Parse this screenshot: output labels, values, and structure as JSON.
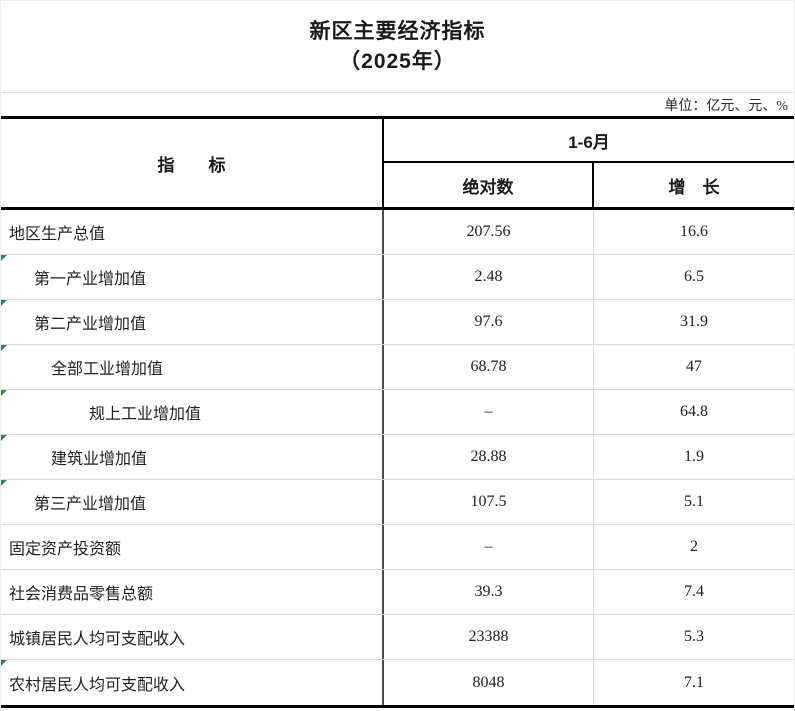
{
  "page": {
    "background_color": "#ffffff",
    "thick_border_color": "#000000",
    "row_separator_color": "#d9d9d9",
    "column_divider_color": "#4d4d4d",
    "flag_color": "#2e8b3d"
  },
  "header": {
    "title_line1": "新区主要经济指标",
    "title_line2": "（2025年）",
    "unit_note": "单位：亿元、元、%"
  },
  "table": {
    "columns": {
      "indicator": "指　　标",
      "period": "1-6月",
      "absolute": "绝对数",
      "growth": "增　长"
    },
    "rows": [
      {
        "label": "地区生产总值",
        "abs": "207.56",
        "growth": "16.6",
        "indent": 0,
        "flag": false
      },
      {
        "label": "第一产业增加值",
        "abs": "2.48",
        "growth": "6.5",
        "indent": 1,
        "flag": true
      },
      {
        "label": "第二产业增加值",
        "abs": "97.6",
        "growth": "31.9",
        "indent": 1,
        "flag": true
      },
      {
        "label": "全部工业增加值",
        "abs": "68.78",
        "growth": "47",
        "indent": 2,
        "flag": true
      },
      {
        "label": "规上工业增加值",
        "abs": "–",
        "growth": "64.8",
        "indent": 3,
        "flag": true
      },
      {
        "label": "建筑业增加值",
        "abs": "28.88",
        "growth": "1.9",
        "indent": 2,
        "flag": true
      },
      {
        "label": "第三产业增加值",
        "abs": "107.5",
        "growth": "5.1",
        "indent": 1,
        "flag": true
      },
      {
        "label": "固定资产投资额",
        "abs": "–",
        "growth": "2",
        "indent": 0,
        "flag": false
      },
      {
        "label": "社会消费品零售总额",
        "abs": "39.3",
        "growth": "7.4",
        "indent": 0,
        "flag": false
      },
      {
        "label": "城镇居民人均可支配收入",
        "abs": "23388",
        "growth": "5.3",
        "indent": 0,
        "flag": false
      },
      {
        "label": "农村居民人均可支配收入",
        "abs": "8048",
        "growth": "7.1",
        "indent": 0,
        "flag": true
      }
    ]
  }
}
